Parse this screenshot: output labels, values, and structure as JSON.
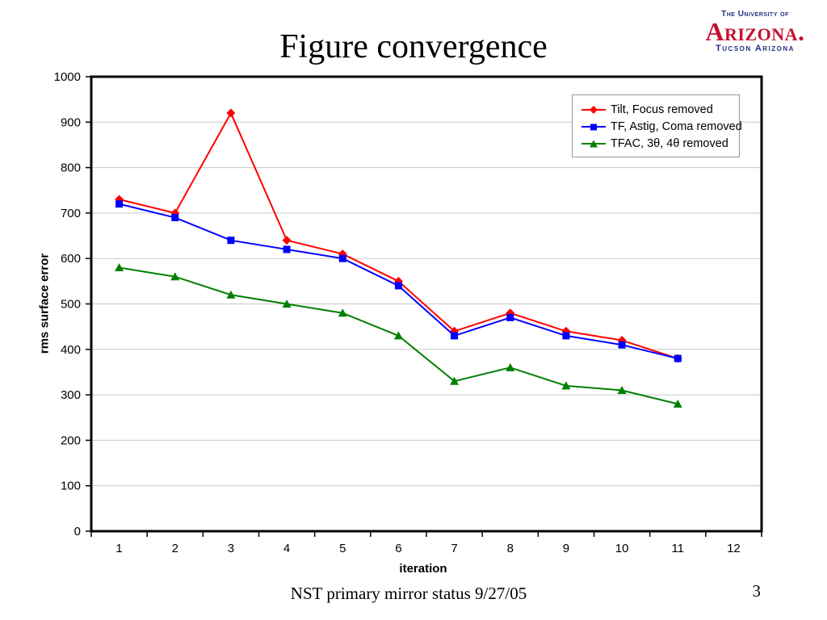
{
  "slide": {
    "title": "Figure convergence",
    "footer": "NST primary mirror status 9/27/05",
    "page_number": "3"
  },
  "logo": {
    "line_top": "The University of",
    "name": "Arizona.",
    "line_bottom": "Tucson Arizona",
    "blue": "#232F81",
    "red": "#C41230"
  },
  "chart_data": {
    "type": "line",
    "title": "",
    "xlabel": "iteration",
    "ylabel": "rms surface error",
    "x_axis_categories": [
      1,
      2,
      3,
      4,
      5,
      6,
      7,
      8,
      9,
      10,
      11,
      12
    ],
    "x": [
      1,
      2,
      3,
      4,
      5,
      6,
      7,
      8,
      9,
      10,
      11
    ],
    "ylim": [
      0,
      1000
    ],
    "y_tick_interval": 100,
    "grid": true,
    "gridline_color": "#c9c9c9",
    "legend_position": "top-right-inside",
    "series": [
      {
        "name": "Tilt, Focus removed",
        "color": "#ff0000",
        "marker": "diamond",
        "values": [
          730,
          700,
          920,
          640,
          610,
          550,
          440,
          480,
          440,
          420,
          380
        ]
      },
      {
        "name": "TF, Astig, Coma removed",
        "color": "#0000ff",
        "marker": "square",
        "values": [
          720,
          690,
          640,
          620,
          600,
          540,
          430,
          470,
          430,
          410,
          380
        ]
      },
      {
        "name": "TFAC, 3θ, 4θ removed",
        "color": "#008000",
        "marker": "triangle",
        "values": [
          580,
          560,
          520,
          500,
          480,
          430,
          330,
          360,
          320,
          310,
          280
        ]
      }
    ]
  }
}
